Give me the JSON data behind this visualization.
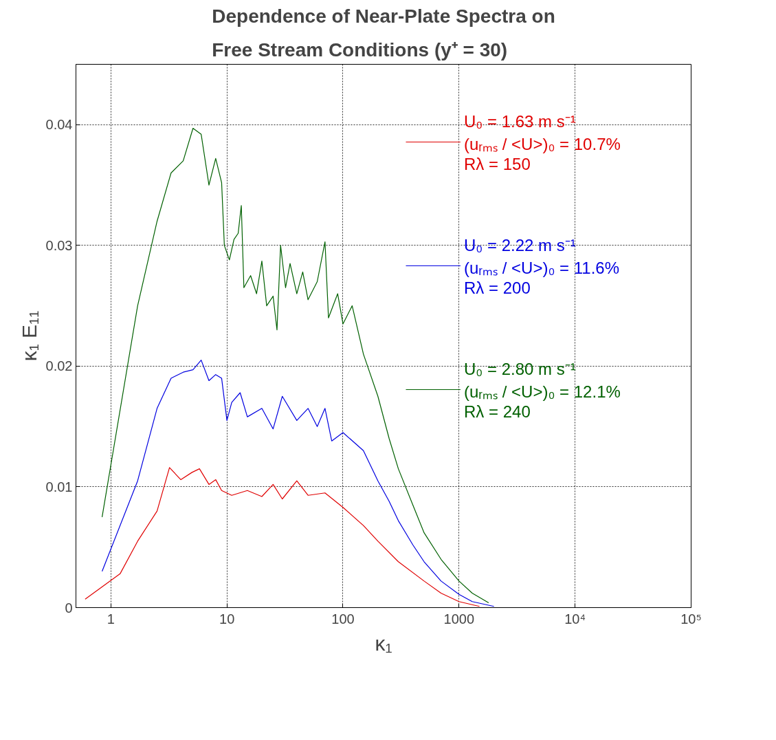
{
  "chart_data": {
    "type": "line",
    "title": "Dependence of Near-Plate Spectra on\nFree Stream Conditions (y⁺ = 30)",
    "xlabel": "κ₁",
    "ylabel": "κ₁ E₁₁",
    "log": "x",
    "xlim": [
      0.5,
      100000
    ],
    "xticks": [
      1,
      10,
      100,
      1000,
      {
        "value": 10000,
        "label": "10⁴"
      },
      {
        "value": 100000,
        "label": "10⁵"
      }
    ],
    "ylim": [
      0,
      0.045
    ],
    "yticks": [
      0,
      0.01,
      0.02,
      0.03,
      0.04
    ],
    "grid": true,
    "legend": "top right",
    "line_style": "solid",
    "marker": "none",
    "series": [
      {
        "name": "U₀ = 1.63 m s⁻¹\n(uᵣₘₛ / <U>)₀ = 10.7%\nRλ = 150",
        "color": "#e00000",
        "x": [
          0.6,
          1.2,
          1.7,
          2.5,
          3.2,
          4.0,
          5.0,
          5.8,
          7.0,
          8.0,
          9.0,
          11,
          15,
          20,
          25,
          30,
          40,
          50,
          70,
          100,
          150,
          200,
          300,
          500,
          700,
          1000,
          1500
        ],
        "values": [
          0.0007,
          0.0028,
          0.0055,
          0.008,
          0.0116,
          0.0106,
          0.0112,
          0.0115,
          0.0102,
          0.0106,
          0.0097,
          0.0093,
          0.0097,
          0.0092,
          0.0102,
          0.009,
          0.0105,
          0.0093,
          0.0095,
          0.0083,
          0.0068,
          0.0055,
          0.0038,
          0.0022,
          0.0012,
          0.0005,
          0.0001
        ]
      },
      {
        "name": "U₀ = 2.22 m s⁻¹\n(uᵣₘₛ / <U>)₀ = 11.6%\nRλ = 200",
        "color": "#0000e0",
        "x": [
          0.84,
          1.7,
          2.5,
          3.3,
          4.2,
          5.1,
          6.0,
          7.0,
          8.0,
          9.0,
          10,
          11,
          13,
          15,
          20,
          25,
          30,
          40,
          50,
          60,
          70,
          80,
          100,
          150,
          200,
          250,
          300,
          400,
          500,
          700,
          1000,
          1300,
          2000
        ],
        "values": [
          0.003,
          0.0105,
          0.0165,
          0.019,
          0.0195,
          0.0197,
          0.0205,
          0.0188,
          0.0193,
          0.019,
          0.0155,
          0.017,
          0.0178,
          0.0158,
          0.0165,
          0.0148,
          0.0175,
          0.0155,
          0.0165,
          0.015,
          0.0165,
          0.0138,
          0.0145,
          0.013,
          0.0105,
          0.0088,
          0.0072,
          0.0052,
          0.0038,
          0.0022,
          0.0011,
          0.0005,
          0.0001
        ]
      },
      {
        "name": "U₀ = 2.80 m s⁻¹\n(uᵣₘₛ / <U>)₀ = 12.1%\nRλ = 240",
        "color": "#006000",
        "x": [
          0.84,
          1.7,
          2.5,
          3.3,
          4.2,
          5.1,
          6.0,
          7.0,
          8.0,
          9.0,
          9.5,
          10.5,
          11.5,
          12.5,
          13.3,
          14,
          16,
          18,
          20,
          22,
          25,
          27,
          29,
          32,
          35,
          40,
          45,
          50,
          60,
          70,
          75,
          90,
          100,
          120,
          150,
          200,
          250,
          300,
          400,
          500,
          700,
          1000,
          1300,
          1800
        ],
        "values": [
          0.0075,
          0.025,
          0.032,
          0.036,
          0.037,
          0.0397,
          0.0392,
          0.035,
          0.0372,
          0.0352,
          0.03,
          0.0288,
          0.0305,
          0.031,
          0.0333,
          0.0265,
          0.0275,
          0.026,
          0.0287,
          0.025,
          0.0258,
          0.023,
          0.03,
          0.0265,
          0.0285,
          0.026,
          0.0278,
          0.0255,
          0.027,
          0.0303,
          0.024,
          0.026,
          0.0235,
          0.025,
          0.021,
          0.0175,
          0.014,
          0.0115,
          0.0085,
          0.0062,
          0.004,
          0.0022,
          0.0012,
          0.0004
        ]
      }
    ]
  }
}
